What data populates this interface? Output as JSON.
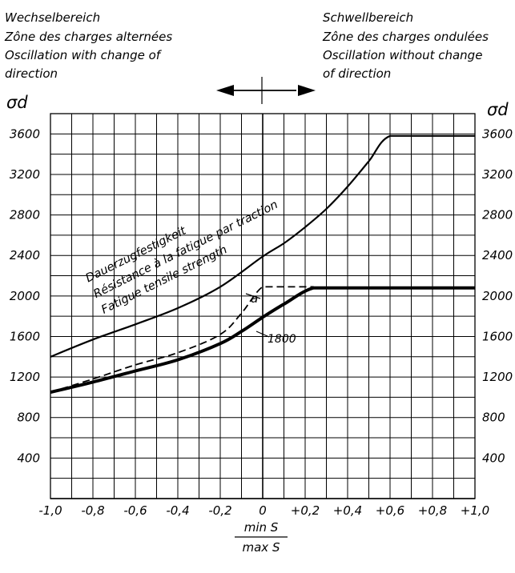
{
  "chart_data": {
    "type": "line",
    "x_axis": {
      "range": [
        -1.0,
        1.0
      ],
      "ticks": [
        -1.0,
        -0.8,
        -0.6,
        -0.4,
        -0.2,
        0,
        0.2,
        0.4,
        0.6,
        0.8,
        1.0
      ],
      "tick_labels": [
        "-1,0",
        "-0,8",
        "-0,6",
        "-0,4",
        "-0,2",
        "0",
        "+0,2",
        "+0,4",
        "+0,6",
        "+0,8",
        "+1,0"
      ],
      "label_numerator": "min S",
      "label_denominator": "max S"
    },
    "y_axis": {
      "range": [
        0,
        3800
      ],
      "ticks": [
        400,
        800,
        1200,
        1600,
        2000,
        2400,
        2800,
        3200,
        3600
      ],
      "tick_labels": [
        "400",
        "800",
        "1200",
        "1600",
        "2000",
        "2400",
        "2800",
        "3200",
        "3600"
      ],
      "left_label": "σd",
      "right_label": "σd"
    },
    "grid": true,
    "regions": {
      "left": [
        "Wechselbereich",
        "Zône des charges alternées",
        "Oscillation with change of",
        "direction"
      ],
      "right": [
        "Schwellbereich",
        "Zône des charges ondulées",
        "Oscillation without change",
        "of direction"
      ]
    },
    "curve_labels": [
      "Dauerzugfestigkeit",
      "Résistance à la fatigue par traction",
      "Fatigue tensile strength"
    ],
    "annotations": {
      "point_label": "1800",
      "dashed_label": "a"
    },
    "series": [
      {
        "style": "solid-thin",
        "x": [
          -1.0,
          -0.8,
          -0.6,
          -0.4,
          -0.2,
          0.0,
          0.1,
          0.2,
          0.3,
          0.4,
          0.5,
          0.6,
          0.8,
          1.0
        ],
        "y": [
          1400,
          1570,
          1720,
          1880,
          2090,
          2390,
          2520,
          2680,
          2860,
          3080,
          3330,
          3580,
          3580,
          3580
        ]
      },
      {
        "style": "solid-thick",
        "x": [
          -1.0,
          -0.8,
          -0.6,
          -0.4,
          -0.2,
          -0.1,
          0.0,
          0.1,
          0.24,
          0.4,
          0.6,
          0.8,
          1.0
        ],
        "y": [
          1050,
          1150,
          1260,
          1370,
          1530,
          1650,
          1790,
          1920,
          2080,
          2080,
          2080,
          2080,
          2080
        ]
      },
      {
        "style": "dashed",
        "x": [
          -1.0,
          -0.8,
          -0.6,
          -0.4,
          -0.2,
          -0.1,
          0.0,
          0.1,
          0.24
        ],
        "y": [
          1050,
          1180,
          1320,
          1440,
          1620,
          1830,
          2090,
          2090,
          2090
        ]
      }
    ]
  }
}
